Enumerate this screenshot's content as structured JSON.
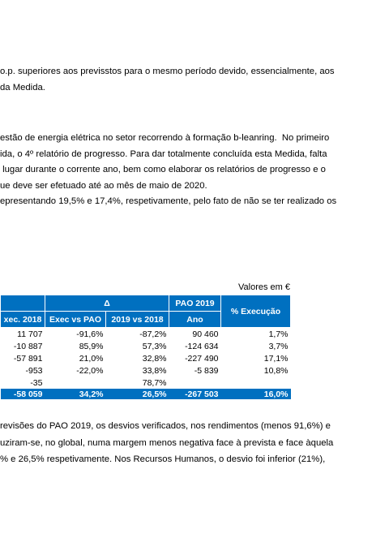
{
  "paragraph_1": [
    "o.p. superiores aos previsstos para o mesmo período devido, essencialmente, aos",
    "da Medida."
  ],
  "paragraph_2": [
    "estão de energia elétrica no setor recorrendo à formação b-leanring.  No primeiro",
    "ida, o 4º relatório de progresso. Para dar totalmente concluída esta Medida, falta",
    " lugar durante o corrente ano, bem como elaborar os relatórios de progresso e o",
    "ue deve ser efetuado até ao mês de maio de 2020.",
    "epresentando 19,5% e 17,4%, respetivamente, pelo fato de não se ter realizado os"
  ],
  "table": {
    "caption": "Valores em €",
    "header": {
      "delta": "Δ",
      "pao": "PAO 2019",
      "execution": "% Execução",
      "columns": [
        "xec. 2018",
        "Exec vs PAO",
        "2019 vs 2018",
        "Ano"
      ]
    },
    "rows": [
      [
        "11 707",
        "-91,6%",
        "-87,2%",
        "90 460",
        "1,7%"
      ],
      [
        "-10 887",
        "85,9%",
        "57,3%",
        "-124 634",
        "3,7%"
      ],
      [
        "-57 891",
        "21,0%",
        "32,8%",
        "-227 490",
        "17,1%"
      ],
      [
        "-953",
        "-22,0%",
        "33,8%",
        "-5 839",
        "10,8%"
      ],
      [
        "-35",
        null,
        "78,7%",
        null,
        null
      ]
    ],
    "total": [
      "-58 059",
      "34,2%",
      "26,5%",
      "-267 503",
      "16,0%"
    ]
  },
  "paragraph_3": [
    "revisões do PAO 2019, os desvios verificados, nos rendimentos (menos 91,6%) e",
    "uziram-se, no global, numa margem menos negativa face à prevista e face àquela",
    "% e 26,5% respetivamente. Nos Recursos Humanos, o desvio foi inferior (21%),"
  ]
}
